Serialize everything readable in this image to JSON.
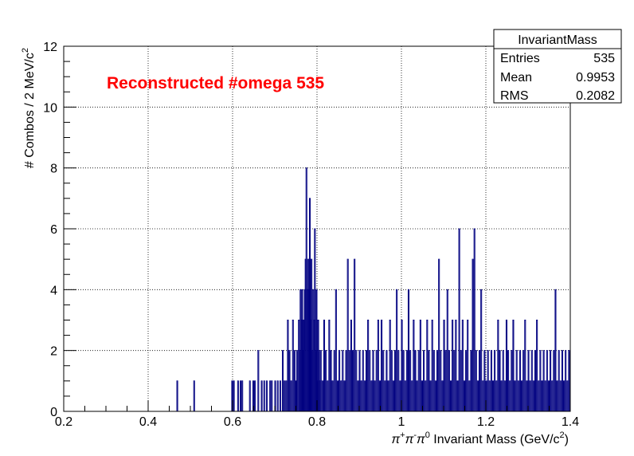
{
  "chart_data": {
    "type": "histogram",
    "title": "",
    "xlabel_parts": [
      "π",
      "+",
      "π",
      "-",
      "π",
      "0",
      " Invariant Mass (GeV/c",
      "2",
      ")"
    ],
    "ylabel_parts": [
      "# Combos / 2 MeV/c",
      "2"
    ],
    "xlim": [
      0.2,
      1.4
    ],
    "ylim": [
      0,
      12
    ],
    "xticks": [
      0.2,
      0.4,
      0.6,
      0.8,
      1.0,
      1.2,
      1.4
    ],
    "xtick_labels": [
      "0.2",
      "0.4",
      "0.6",
      "0.8",
      "1",
      "1.2",
      "1.4"
    ],
    "yticks": [
      0,
      2,
      4,
      6,
      8,
      10,
      12
    ],
    "ytick_labels": [
      "0",
      "2",
      "4",
      "6",
      "8",
      "10",
      "12"
    ],
    "grid": true,
    "bin_width": 0.002,
    "line_color": "#000080",
    "annotation": {
      "text": "Reconstructed #omega 535",
      "color": "#ff0000"
    },
    "stats_box": {
      "title": "InvariantMass",
      "rows": [
        {
          "label": "Entries",
          "value": "535"
        },
        {
          "label": "Mean",
          "value": "0.9953"
        },
        {
          "label": "RMS",
          "value": "0.2082"
        }
      ]
    },
    "bins": [
      [
        0.468,
        1
      ],
      [
        0.508,
        1
      ],
      [
        0.598,
        1
      ],
      [
        0.602,
        1
      ],
      [
        0.612,
        1
      ],
      [
        0.618,
        1
      ],
      [
        0.622,
        1
      ],
      [
        0.64,
        1
      ],
      [
        0.648,
        1
      ],
      [
        0.652,
        1
      ],
      [
        0.66,
        2
      ],
      [
        0.668,
        1
      ],
      [
        0.674,
        1
      ],
      [
        0.68,
        1
      ],
      [
        0.688,
        1
      ],
      [
        0.692,
        1
      ],
      [
        0.7,
        1
      ],
      [
        0.706,
        1
      ],
      [
        0.712,
        1
      ],
      [
        0.718,
        2
      ],
      [
        0.722,
        1
      ],
      [
        0.726,
        1
      ],
      [
        0.73,
        3
      ],
      [
        0.734,
        2
      ],
      [
        0.738,
        1
      ],
      [
        0.742,
        3
      ],
      [
        0.746,
        2
      ],
      [
        0.75,
        1
      ],
      [
        0.752,
        2
      ],
      [
        0.756,
        3
      ],
      [
        0.758,
        2
      ],
      [
        0.76,
        4
      ],
      [
        0.762,
        3
      ],
      [
        0.764,
        4
      ],
      [
        0.766,
        2
      ],
      [
        0.768,
        3
      ],
      [
        0.77,
        4
      ],
      [
        0.772,
        5
      ],
      [
        0.774,
        8
      ],
      [
        0.776,
        4
      ],
      [
        0.778,
        5
      ],
      [
        0.78,
        4
      ],
      [
        0.782,
        7
      ],
      [
        0.784,
        3
      ],
      [
        0.786,
        5
      ],
      [
        0.788,
        2
      ],
      [
        0.79,
        4
      ],
      [
        0.792,
        3
      ],
      [
        0.794,
        6
      ],
      [
        0.796,
        2
      ],
      [
        0.798,
        4
      ],
      [
        0.8,
        1
      ],
      [
        0.802,
        3
      ],
      [
        0.804,
        2
      ],
      [
        0.806,
        1
      ],
      [
        0.808,
        2
      ],
      [
        0.812,
        1
      ],
      [
        0.816,
        3
      ],
      [
        0.82,
        2
      ],
      [
        0.824,
        1
      ],
      [
        0.828,
        3
      ],
      [
        0.832,
        2
      ],
      [
        0.836,
        1
      ],
      [
        0.84,
        2
      ],
      [
        0.844,
        4
      ],
      [
        0.848,
        1
      ],
      [
        0.852,
        2
      ],
      [
        0.856,
        1
      ],
      [
        0.86,
        2
      ],
      [
        0.864,
        1
      ],
      [
        0.868,
        2
      ],
      [
        0.872,
        5
      ],
      [
        0.876,
        2
      ],
      [
        0.88,
        3
      ],
      [
        0.884,
        2
      ],
      [
        0.888,
        5
      ],
      [
        0.892,
        2
      ],
      [
        0.896,
        1
      ],
      [
        0.9,
        2
      ],
      [
        0.904,
        1
      ],
      [
        0.908,
        2
      ],
      [
        0.912,
        1
      ],
      [
        0.916,
        2
      ],
      [
        0.92,
        3
      ],
      [
        0.924,
        2
      ],
      [
        0.928,
        1
      ],
      [
        0.932,
        2
      ],
      [
        0.936,
        1
      ],
      [
        0.94,
        2
      ],
      [
        0.944,
        3
      ],
      [
        0.948,
        1
      ],
      [
        0.952,
        3
      ],
      [
        0.956,
        2
      ],
      [
        0.96,
        1
      ],
      [
        0.964,
        2
      ],
      [
        0.968,
        1
      ],
      [
        0.972,
        3
      ],
      [
        0.976,
        2
      ],
      [
        0.98,
        1
      ],
      [
        0.984,
        2
      ],
      [
        0.988,
        4
      ],
      [
        0.992,
        2
      ],
      [
        0.996,
        1
      ],
      [
        1.0,
        3
      ],
      [
        1.004,
        2
      ],
      [
        1.008,
        1
      ],
      [
        1.012,
        2
      ],
      [
        1.016,
        4
      ],
      [
        1.02,
        2
      ],
      [
        1.024,
        1
      ],
      [
        1.028,
        3
      ],
      [
        1.032,
        2
      ],
      [
        1.036,
        1
      ],
      [
        1.04,
        2
      ],
      [
        1.044,
        3
      ],
      [
        1.048,
        1
      ],
      [
        1.052,
        2
      ],
      [
        1.056,
        1
      ],
      [
        1.06,
        3
      ],
      [
        1.064,
        2
      ],
      [
        1.068,
        1
      ],
      [
        1.072,
        3
      ],
      [
        1.076,
        2
      ],
      [
        1.08,
        1
      ],
      [
        1.084,
        2
      ],
      [
        1.088,
        5
      ],
      [
        1.092,
        2
      ],
      [
        1.096,
        1
      ],
      [
        1.1,
        3
      ],
      [
        1.104,
        2
      ],
      [
        1.108,
        4
      ],
      [
        1.112,
        2
      ],
      [
        1.116,
        1
      ],
      [
        1.12,
        3
      ],
      [
        1.124,
        2
      ],
      [
        1.128,
        3
      ],
      [
        1.132,
        1
      ],
      [
        1.136,
        6
      ],
      [
        1.14,
        2
      ],
      [
        1.144,
        3
      ],
      [
        1.148,
        1
      ],
      [
        1.152,
        2
      ],
      [
        1.156,
        3
      ],
      [
        1.16,
        1
      ],
      [
        1.164,
        2
      ],
      [
        1.168,
        5
      ],
      [
        1.172,
        6
      ],
      [
        1.176,
        2
      ],
      [
        1.18,
        1
      ],
      [
        1.184,
        2
      ],
      [
        1.188,
        4
      ],
      [
        1.192,
        1
      ],
      [
        1.196,
        2
      ],
      [
        1.2,
        1
      ],
      [
        1.204,
        2
      ],
      [
        1.208,
        1
      ],
      [
        1.212,
        2
      ],
      [
        1.216,
        1
      ],
      [
        1.22,
        2
      ],
      [
        1.224,
        1
      ],
      [
        1.228,
        3
      ],
      [
        1.232,
        2
      ],
      [
        1.236,
        1
      ],
      [
        1.24,
        2
      ],
      [
        1.244,
        1
      ],
      [
        1.248,
        3
      ],
      [
        1.252,
        2
      ],
      [
        1.256,
        1
      ],
      [
        1.26,
        2
      ],
      [
        1.264,
        3
      ],
      [
        1.268,
        1
      ],
      [
        1.272,
        2
      ],
      [
        1.276,
        1
      ],
      [
        1.28,
        2
      ],
      [
        1.284,
        1
      ],
      [
        1.288,
        2
      ],
      [
        1.292,
        3
      ],
      [
        1.296,
        1
      ],
      [
        1.3,
        2
      ],
      [
        1.304,
        1
      ],
      [
        1.308,
        2
      ],
      [
        1.312,
        1
      ],
      [
        1.316,
        2
      ],
      [
        1.32,
        3
      ],
      [
        1.324,
        1
      ],
      [
        1.328,
        2
      ],
      [
        1.332,
        1
      ],
      [
        1.336,
        2
      ],
      [
        1.34,
        1
      ],
      [
        1.344,
        2
      ],
      [
        1.348,
        1
      ],
      [
        1.352,
        2
      ],
      [
        1.356,
        1
      ],
      [
        1.36,
        2
      ],
      [
        1.364,
        4
      ],
      [
        1.368,
        1
      ],
      [
        1.372,
        2
      ],
      [
        1.376,
        1
      ],
      [
        1.38,
        2
      ],
      [
        1.384,
        1
      ],
      [
        1.388,
        2
      ],
      [
        1.392,
        1
      ],
      [
        1.396,
        2
      ]
    ]
  }
}
